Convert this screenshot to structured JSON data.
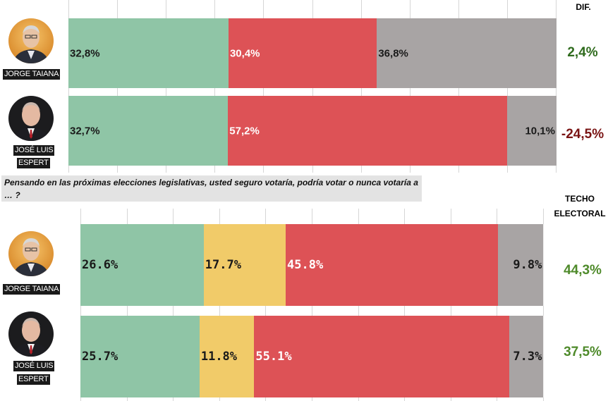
{
  "headers": {
    "dif": "DIF.",
    "techo": "TECHO",
    "electoral": "ELECTORAL"
  },
  "question": "Pensando en las próximas elecciones legislativas, usted seguro votaría, podría votar o nunca votaría a … ?",
  "candidates": {
    "taiana": {
      "name": "JORGE TAIANA"
    },
    "espert": {
      "name_line1": "JOSÉ LUIS",
      "name_line2": "ESPERT"
    }
  },
  "colors": {
    "green": "#8fc5a6",
    "yellow": "#f1cb69",
    "red": "#dd5256",
    "gray": "#a8a4a4",
    "dif_positive": "#2f6b1d",
    "dif_negative": "#7a1414",
    "techo": "#4e8a2a"
  },
  "chart_data": [
    {
      "type": "bar",
      "stacked": true,
      "orientation": "horizontal",
      "categories": [
        "JORGE TAIANA",
        "JOSÉ LUIS ESPERT"
      ],
      "series": [
        {
          "values": [
            32.8,
            32.7
          ],
          "labels": [
            "32,8%",
            "32,7%"
          ]
        },
        {
          "values": [
            30.4,
            57.2
          ],
          "labels": [
            "30,4%",
            "57,2%"
          ]
        },
        {
          "values": [
            36.8,
            10.1
          ],
          "labels": [
            "36,8%",
            "10,1%"
          ]
        }
      ],
      "dif": [
        "2,4%",
        "-24,5%"
      ],
      "xlim": [
        0,
        100
      ]
    },
    {
      "type": "bar",
      "stacked": true,
      "orientation": "horizontal",
      "categories": [
        "JORGE TAIANA",
        "JOSÉ LUIS ESPERT"
      ],
      "series": [
        {
          "values": [
            26.6,
            25.7
          ],
          "labels": [
            "26.6%",
            "25.7%"
          ]
        },
        {
          "values": [
            17.7,
            11.8
          ],
          "labels": [
            "17.7%",
            "11.8%"
          ]
        },
        {
          "values": [
            45.8,
            55.1
          ],
          "labels": [
            "45.8%",
            "55.1%"
          ]
        },
        {
          "values": [
            9.8,
            7.3
          ],
          "labels": [
            "9.8%",
            "7.3%"
          ]
        }
      ],
      "techo": [
        "44,3%",
        "37,5%"
      ],
      "xlim": [
        0,
        100
      ]
    }
  ]
}
